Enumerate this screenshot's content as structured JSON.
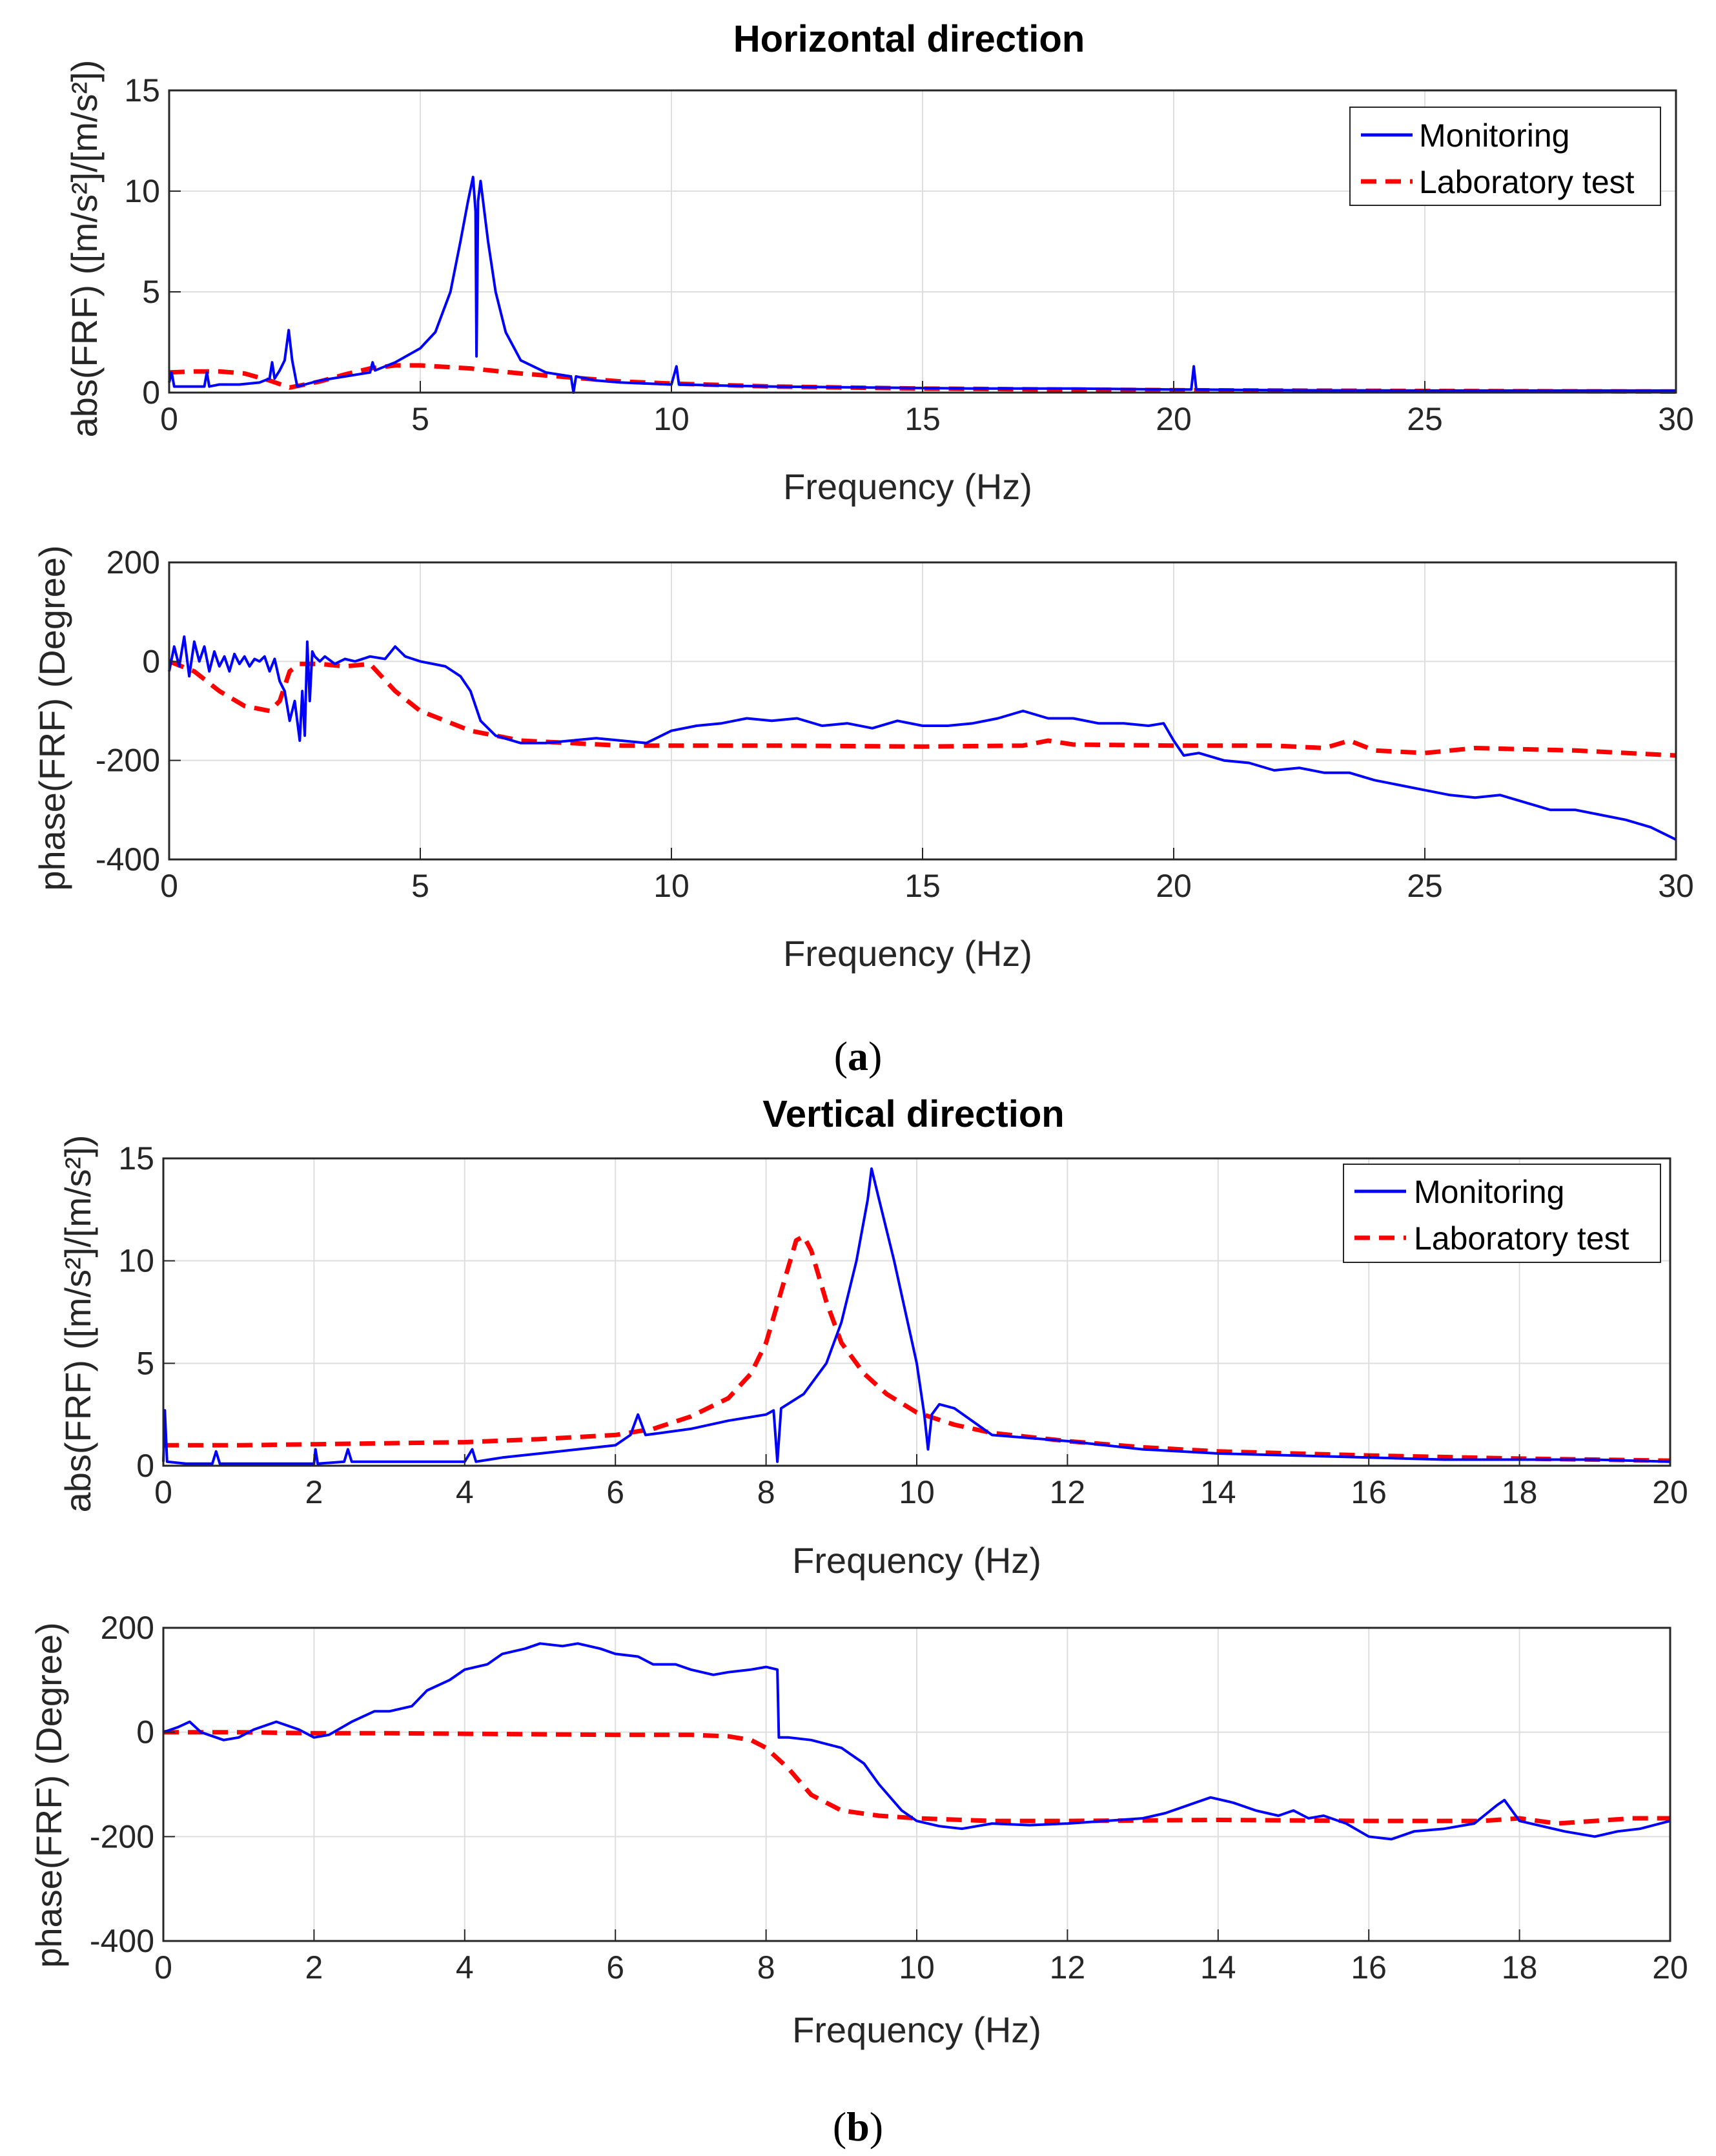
{
  "chart_data": [
    {
      "type": "line",
      "title": "Horizontal direction",
      "xlabel": "Frequency (Hz)",
      "ylabel": "abs(FRF) ([m/s²]/[m/s²])",
      "xlim": [
        0,
        30
      ],
      "ylim": [
        0,
        15
      ],
      "xticks": [
        "0",
        "5",
        "10",
        "15",
        "20",
        "25",
        "30"
      ],
      "yticks": [
        "0",
        "5",
        "10",
        "15"
      ],
      "grid": true,
      "legend": "top-right",
      "series": [
        {
          "name": "Monitoring",
          "color": "#0000ff",
          "style": "solid",
          "x": [
            0,
            0.05,
            0.1,
            0.3,
            0.6,
            0.7,
            0.75,
            0.8,
            1.0,
            1.4,
            1.8,
            2.0,
            2.05,
            2.1,
            2.2,
            2.3,
            2.38,
            2.45,
            2.55,
            2.7,
            3.0,
            3.5,
            4.0,
            4.05,
            4.1,
            4.5,
            5.0,
            5.3,
            5.6,
            5.8,
            5.95,
            6.05,
            6.1,
            6.12,
            6.15,
            6.2,
            6.35,
            6.5,
            6.7,
            7.0,
            7.5,
            8.0,
            8.05,
            8.1,
            8.5,
            9.0,
            10.0,
            10.1,
            10.15,
            10.2,
            11.0,
            12.0,
            14.0,
            16.0,
            18.0,
            20.0,
            20.35,
            20.4,
            20.45,
            22.0,
            25.0,
            28.0,
            30.0
          ],
          "y": [
            0.5,
            1.0,
            0.3,
            0.3,
            0.3,
            0.3,
            1.0,
            0.3,
            0.4,
            0.4,
            0.5,
            0.7,
            1.5,
            0.7,
            1.1,
            1.6,
            3.1,
            1.6,
            0.3,
            0.4,
            0.6,
            0.8,
            1.0,
            1.5,
            1.1,
            1.5,
            2.2,
            3.0,
            5.0,
            7.5,
            9.5,
            10.7,
            9.0,
            1.8,
            9.5,
            10.5,
            7.5,
            5.0,
            3.0,
            1.6,
            1.0,
            0.8,
            0.0,
            0.8,
            0.6,
            0.5,
            0.4,
            1.3,
            0.4,
            0.4,
            0.35,
            0.3,
            0.25,
            0.2,
            0.2,
            0.15,
            0.15,
            1.3,
            0.15,
            0.12,
            0.1,
            0.1,
            0.1
          ]
        },
        {
          "name": "Laboratory test",
          "color": "#ff0000",
          "style": "dashed",
          "x": [
            0,
            0.5,
            1.0,
            1.5,
            2.0,
            2.4,
            3.0,
            3.5,
            4.0,
            4.5,
            5.0,
            6.0,
            7.0,
            8.0,
            9.0,
            10.0,
            12.0,
            15.0,
            20.0,
            25.0,
            30.0
          ],
          "y": [
            1.0,
            1.05,
            1.05,
            0.95,
            0.6,
            0.25,
            0.55,
            0.9,
            1.2,
            1.35,
            1.35,
            1.2,
            0.95,
            0.75,
            0.55,
            0.45,
            0.3,
            0.2,
            0.12,
            0.08,
            0.05
          ]
        }
      ]
    },
    {
      "type": "line",
      "title": "",
      "xlabel": "Frequency (Hz)",
      "ylabel": "phase(FRF) (Degree)",
      "xlim": [
        0,
        30
      ],
      "ylim": [
        -400,
        200
      ],
      "xticks": [
        "0",
        "5",
        "10",
        "15",
        "20",
        "25",
        "30"
      ],
      "yticks": [
        "-400",
        "-200",
        "0",
        "200"
      ],
      "grid": true,
      "series": [
        {
          "name": "Monitoring",
          "color": "#0000ff",
          "style": "solid",
          "x": [
            0,
            0.1,
            0.2,
            0.3,
            0.4,
            0.5,
            0.6,
            0.7,
            0.8,
            0.9,
            1.0,
            1.1,
            1.2,
            1.3,
            1.4,
            1.5,
            1.6,
            1.7,
            1.8,
            1.9,
            2.0,
            2.1,
            2.2,
            2.3,
            2.4,
            2.5,
            2.6,
            2.65,
            2.7,
            2.75,
            2.8,
            2.85,
            2.9,
            3.0,
            3.1,
            3.3,
            3.5,
            3.7,
            4.0,
            4.3,
            4.5,
            4.6,
            4.7,
            5.0,
            5.5,
            5.8,
            6.0,
            6.2,
            6.5,
            7.0,
            7.5,
            8.0,
            8.5,
            9.0,
            9.5,
            10.0,
            10.5,
            11.0,
            11.5,
            12.0,
            12.5,
            13.0,
            13.5,
            14.0,
            14.5,
            15.0,
            15.5,
            16.0,
            16.5,
            17.0,
            17.5,
            18.0,
            18.5,
            19.0,
            19.5,
            19.8,
            20.0,
            20.2,
            20.5,
            21.0,
            21.5,
            22.0,
            22.5,
            23.0,
            23.5,
            24.0,
            24.5,
            25.0,
            25.5,
            26.0,
            26.5,
            27.0,
            27.5,
            28.0,
            28.5,
            29.0,
            29.5,
            30.0
          ],
          "y": [
            -20,
            30,
            -10,
            50,
            -30,
            40,
            0,
            30,
            -20,
            20,
            -10,
            10,
            -20,
            15,
            -5,
            10,
            -10,
            5,
            0,
            10,
            -20,
            5,
            -40,
            -60,
            -120,
            -80,
            -160,
            -60,
            -150,
            40,
            -80,
            20,
            10,
            0,
            10,
            -5,
            5,
            0,
            10,
            5,
            30,
            20,
            10,
            0,
            -10,
            -30,
            -60,
            -120,
            -150,
            -165,
            -165,
            -160,
            -155,
            -160,
            -165,
            -140,
            -130,
            -125,
            -115,
            -120,
            -115,
            -130,
            -125,
            -135,
            -120,
            -130,
            -130,
            -125,
            -115,
            -100,
            -115,
            -115,
            -125,
            -125,
            -130,
            -125,
            -160,
            -190,
            -185,
            -200,
            -205,
            -220,
            -215,
            -225,
            -225,
            -240,
            -250,
            -260,
            -270,
            -275,
            -270,
            -285,
            -300,
            -300,
            -310,
            -320,
            -335,
            -360
          ]
        },
        {
          "name": "Laboratory test",
          "color": "#ff0000",
          "style": "dashed",
          "x": [
            0,
            0.5,
            1.0,
            1.5,
            2.0,
            2.2,
            2.4,
            2.6,
            3.0,
            3.5,
            4.0,
            4.5,
            5.0,
            6.0,
            7.0,
            8.0,
            9.0,
            10.0,
            12.0,
            15.0,
            17.0,
            17.5,
            18.0,
            20.0,
            22.0,
            23.0,
            23.5,
            24.0,
            25.0,
            26.0,
            28.0,
            30.0
          ],
          "y": [
            0,
            -20,
            -60,
            -90,
            -100,
            -80,
            -20,
            -5,
            -5,
            -10,
            -5,
            -60,
            -100,
            -140,
            -160,
            -165,
            -170,
            -170,
            -170,
            -172,
            -170,
            -160,
            -168,
            -170,
            -170,
            -175,
            -160,
            -180,
            -185,
            -175,
            -180,
            -190
          ]
        }
      ]
    },
    {
      "type": "line",
      "title": "Vertical direction",
      "xlabel": "Frequency (Hz)",
      "ylabel": "abs(FRF) ([m/s²]/[m/s²])",
      "xlim": [
        0,
        20
      ],
      "ylim": [
        0,
        15
      ],
      "xticks": [
        "0",
        "2",
        "4",
        "6",
        "8",
        "10",
        "12",
        "14",
        "16",
        "18",
        "20"
      ],
      "yticks": [
        "0",
        "5",
        "10",
        "15"
      ],
      "grid": true,
      "legend": "top-right",
      "series": [
        {
          "name": "Monitoring",
          "color": "#0000ff",
          "style": "solid",
          "x": [
            0,
            0.02,
            0.05,
            0.3,
            0.65,
            0.7,
            0.75,
            1.0,
            1.5,
            2.0,
            2.02,
            2.05,
            2.4,
            2.45,
            2.5,
            3.0,
            3.5,
            4.0,
            4.1,
            4.15,
            4.5,
            5.0,
            5.5,
            6.0,
            6.2,
            6.3,
            6.4,
            7.0,
            7.5,
            8.0,
            8.1,
            8.15,
            8.2,
            8.5,
            8.8,
            9.0,
            9.2,
            9.35,
            9.4,
            9.5,
            9.7,
            10.0,
            10.1,
            10.15,
            10.2,
            10.3,
            10.5,
            11.0,
            12.0,
            13.0,
            14.0,
            15.0,
            16.0,
            17.0,
            18.0,
            19.0,
            20.0
          ],
          "y": [
            0.2,
            2.7,
            0.2,
            0.1,
            0.1,
            0.7,
            0.1,
            0.1,
            0.1,
            0.1,
            0.8,
            0.1,
            0.2,
            0.8,
            0.2,
            0.2,
            0.2,
            0.2,
            0.8,
            0.2,
            0.4,
            0.6,
            0.8,
            1.0,
            1.5,
            2.5,
            1.5,
            1.8,
            2.2,
            2.5,
            2.7,
            0.2,
            2.8,
            3.5,
            5.0,
            7.0,
            10.0,
            13.0,
            14.5,
            13.0,
            10.0,
            5.0,
            2.5,
            0.8,
            2.5,
            3.0,
            2.8,
            1.5,
            1.2,
            0.8,
            0.6,
            0.5,
            0.4,
            0.3,
            0.3,
            0.3,
            0.2
          ]
        },
        {
          "name": "Laboratory test",
          "color": "#ff0000",
          "style": "dashed",
          "x": [
            0,
            1.0,
            2.0,
            3.0,
            4.0,
            5.0,
            6.0,
            6.5,
            7.0,
            7.5,
            7.8,
            8.0,
            8.2,
            8.4,
            8.5,
            8.6,
            8.8,
            9.0,
            9.3,
            9.6,
            10.0,
            10.5,
            11.0,
            12.0,
            13.0,
            14.0,
            16.0,
            18.0,
            20.0
          ],
          "y": [
            1.0,
            1.0,
            1.05,
            1.1,
            1.15,
            1.3,
            1.5,
            1.8,
            2.4,
            3.3,
            4.5,
            6.0,
            8.5,
            11.0,
            11.2,
            10.5,
            8.0,
            6.0,
            4.5,
            3.5,
            2.6,
            2.0,
            1.6,
            1.2,
            0.9,
            0.7,
            0.5,
            0.35,
            0.25
          ]
        }
      ]
    },
    {
      "type": "line",
      "title": "",
      "xlabel": "Frequency (Hz)",
      "ylabel": "phase(FRF) (Degree)",
      "xlim": [
        0,
        20
      ],
      "ylim": [
        -400,
        200
      ],
      "xticks": [
        "0",
        "2",
        "4",
        "6",
        "8",
        "10",
        "12",
        "14",
        "16",
        "18",
        "20"
      ],
      "yticks": [
        "-400",
        "-200",
        "0",
        "200"
      ],
      "grid": true,
      "series": [
        {
          "name": "Monitoring",
          "color": "#0000ff",
          "style": "solid",
          "x": [
            0,
            0.2,
            0.35,
            0.5,
            0.8,
            1.0,
            1.2,
            1.5,
            1.8,
            2.0,
            2.2,
            2.5,
            2.8,
            3.0,
            3.3,
            3.5,
            3.8,
            4.0,
            4.3,
            4.5,
            4.8,
            5.0,
            5.3,
            5.5,
            5.8,
            6.0,
            6.3,
            6.5,
            6.8,
            7.0,
            7.3,
            7.5,
            7.8,
            8.0,
            8.15,
            8.17,
            8.3,
            8.6,
            9.0,
            9.3,
            9.5,
            9.8,
            10.0,
            10.3,
            10.6,
            11.0,
            11.5,
            12.0,
            12.5,
            13.0,
            13.3,
            13.6,
            13.9,
            14.2,
            14.5,
            14.8,
            15.0,
            15.2,
            15.4,
            15.7,
            16.0,
            16.3,
            16.6,
            17.0,
            17.4,
            17.7,
            17.8,
            18.0,
            18.3,
            18.6,
            19.0,
            19.3,
            19.6,
            20.0
          ],
          "y": [
            0,
            10,
            20,
            0,
            -15,
            -10,
            5,
            20,
            5,
            -10,
            -5,
            20,
            40,
            40,
            50,
            80,
            100,
            120,
            130,
            150,
            160,
            170,
            165,
            170,
            160,
            150,
            145,
            130,
            130,
            120,
            110,
            115,
            120,
            125,
            120,
            -10,
            -10,
            -15,
            -30,
            -60,
            -100,
            -150,
            -170,
            -180,
            -185,
            -175,
            -178,
            -175,
            -170,
            -165,
            -155,
            -140,
            -125,
            -135,
            -150,
            -160,
            -150,
            -165,
            -160,
            -175,
            -200,
            -205,
            -190,
            -185,
            -175,
            -140,
            -130,
            -170,
            -180,
            -190,
            -200,
            -190,
            -185,
            -170
          ]
        },
        {
          "name": "Laboratory test",
          "color": "#ff0000",
          "style": "dashed",
          "x": [
            0,
            1.0,
            2.0,
            3.0,
            4.0,
            5.0,
            6.0,
            7.0,
            7.5,
            7.8,
            8.0,
            8.3,
            8.6,
            9.0,
            9.5,
            10.0,
            11.0,
            12.0,
            14.0,
            16.0,
            17.5,
            18.0,
            18.5,
            19.0,
            19.5,
            20.0
          ],
          "y": [
            0,
            0,
            -2,
            -2,
            -3,
            -4,
            -5,
            -5,
            -8,
            -15,
            -30,
            -70,
            -120,
            -150,
            -160,
            -165,
            -170,
            -170,
            -168,
            -170,
            -170,
            -165,
            -175,
            -170,
            -165,
            -165
          ]
        }
      ]
    }
  ],
  "captions": {
    "a": {
      "open": "(",
      "letter": "a",
      "close": ")"
    },
    "b": {
      "open": "(",
      "letter": "b",
      "close": ")"
    }
  }
}
